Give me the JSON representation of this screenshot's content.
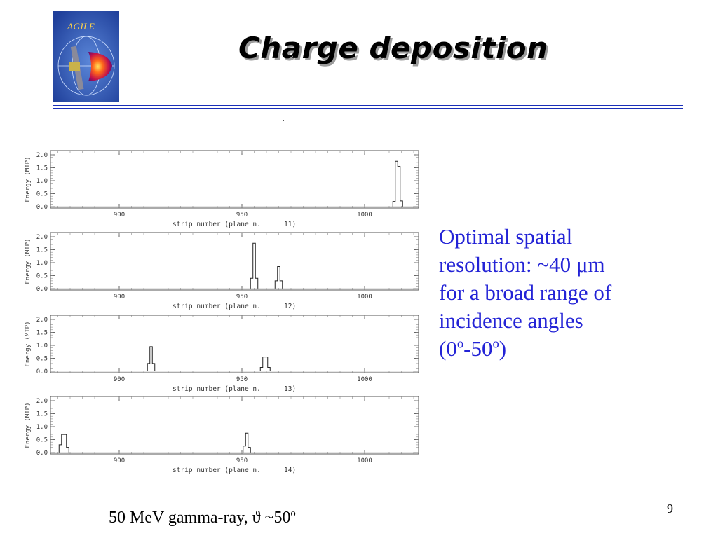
{
  "logo": {
    "label": "AGILE"
  },
  "slide": {
    "title": "Charge deposition",
    "page_number": "9"
  },
  "side_text": {
    "line1": "Optimal spatial",
    "line2_pre": "resolution: ~40 ",
    "line2_unit": "μm",
    "line3": "for a broad range of",
    "line4": "incidence angles",
    "line5_a": "(0",
    "line5_sup1": "o",
    "line5_b": "-50",
    "line5_sup2": "o",
    "line5_c": ")"
  },
  "caption": {
    "text": "50 MeV gamma-ray, ϑ ~50",
    "sup": "o"
  },
  "colors": {
    "accent_blue": "#2323d6",
    "rule_blue": "#1a2fb8"
  },
  "chart_data": [
    {
      "type": "line",
      "xlabel": "strip number (plane n.",
      "plane": "11)",
      "ylabel": "Energy (MIP)",
      "xticks": [
        900,
        950,
        1000
      ],
      "yticks": [
        "2.0",
        "1.5",
        "1.0",
        "0.5",
        "0.0"
      ],
      "xlim": [
        872,
        1022
      ],
      "ylim": [
        0,
        2.0
      ],
      "peaks": [
        {
          "x": 1012,
          "values": [
            0.2,
            1.75,
            1.55,
            0.22
          ]
        }
      ]
    },
    {
      "type": "line",
      "xlabel": "strip number (plane n.",
      "plane": "12)",
      "ylabel": "Energy (MIP)",
      "xticks": [
        900,
        950,
        1000
      ],
      "yticks": [
        "2.0",
        "1.5",
        "1.0",
        "0.5",
        "0.0"
      ],
      "xlim": [
        872,
        1022
      ],
      "ylim": [
        0,
        2.0
      ],
      "peaks": [
        {
          "x": 954,
          "values": [
            0.4,
            1.75,
            0.4
          ]
        },
        {
          "x": 964,
          "values": [
            0.3,
            0.85,
            0.3
          ]
        }
      ]
    },
    {
      "type": "line",
      "xlabel": "strip number (plane n.",
      "plane": "13)",
      "ylabel": "Energy (MIP)",
      "xticks": [
        900,
        950,
        1000
      ],
      "yticks": [
        "2.0",
        "1.5",
        "1.0",
        "0.5",
        "0.0"
      ],
      "xlim": [
        872,
        1022
      ],
      "ylim": [
        0,
        2.0
      ],
      "peaks": [
        {
          "x": 912,
          "values": [
            0.3,
            0.95,
            0.3
          ]
        },
        {
          "x": 958,
          "values": [
            0.15,
            0.55,
            0.55,
            0.15
          ]
        }
      ]
    },
    {
      "type": "line",
      "xlabel": "strip number (plane n.",
      "plane": "14)",
      "ylabel": "Energy (MIP)",
      "xticks": [
        900,
        950,
        1000
      ],
      "yticks": [
        "2.0",
        "1.5",
        "1.0",
        "0.5",
        "0.0"
      ],
      "xlim": [
        872,
        1022
      ],
      "ylim": [
        0,
        2.0
      ],
      "peaks": [
        {
          "x": 876,
          "values": [
            0.3,
            0.7,
            0.7,
            0.2
          ]
        },
        {
          "x": 951,
          "values": [
            0.25,
            0.75,
            0.2
          ]
        }
      ]
    }
  ]
}
